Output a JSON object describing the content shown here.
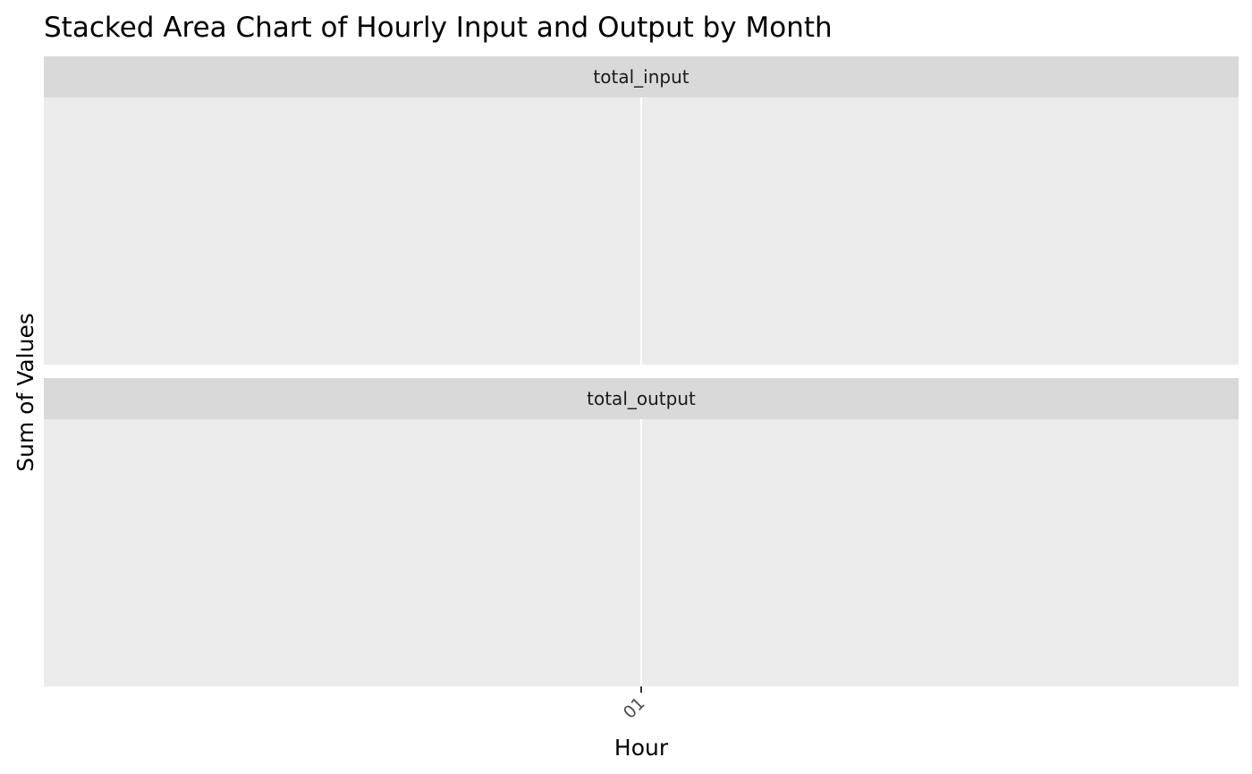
{
  "chart_data": {
    "type": "area",
    "title": "Stacked Area Chart of Hourly Input and Output by Month",
    "xlabel": "Hour",
    "ylabel": "Sum of Values",
    "categories": [
      "01"
    ],
    "facets": [
      {
        "label": "total_input",
        "series": []
      },
      {
        "label": "total_output",
        "series": []
      }
    ],
    "grid": true,
    "legend": "none",
    "colors": {
      "panel_background": "#EBEBEB",
      "strip_background": "#D9D9D9",
      "gridline": "#FFFFFF",
      "tick_mark": "#333333"
    }
  }
}
